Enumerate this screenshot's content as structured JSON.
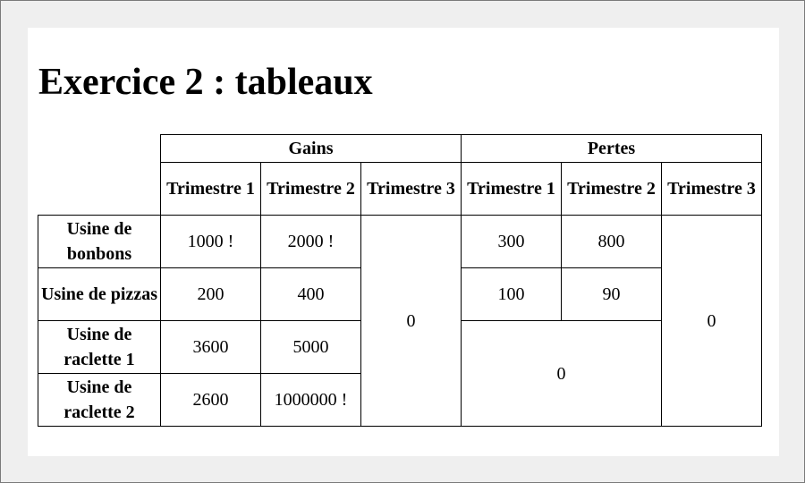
{
  "heading": "Exercice 2 : tableaux",
  "table": {
    "groups": [
      "Gains",
      "Pertes"
    ],
    "quarters": [
      "Trimestre 1",
      "Trimestre 2",
      "Trimestre 3",
      "Trimestre 1",
      "Trimestre 2",
      "Trimestre 3"
    ],
    "rows": [
      {
        "label": "Usine de bonbons",
        "gains_t1": "1000 !",
        "gains_t2": "2000 !",
        "pertes_t1": "300",
        "pertes_t2": "800"
      },
      {
        "label": "Usine de pizzas",
        "gains_t1": "200",
        "gains_t2": "400",
        "pertes_t1": "100",
        "pertes_t2": "90"
      },
      {
        "label": "Usine de raclette 1",
        "gains_t1": "3600",
        "gains_t2": "5000"
      },
      {
        "label": "Usine de raclette 2",
        "gains_t1": "2600",
        "gains_t2": "1000000 !"
      }
    ],
    "gains_t3_merged": "0",
    "pertes_t3_merged": "0",
    "pertes_raclette_merged": "0"
  }
}
